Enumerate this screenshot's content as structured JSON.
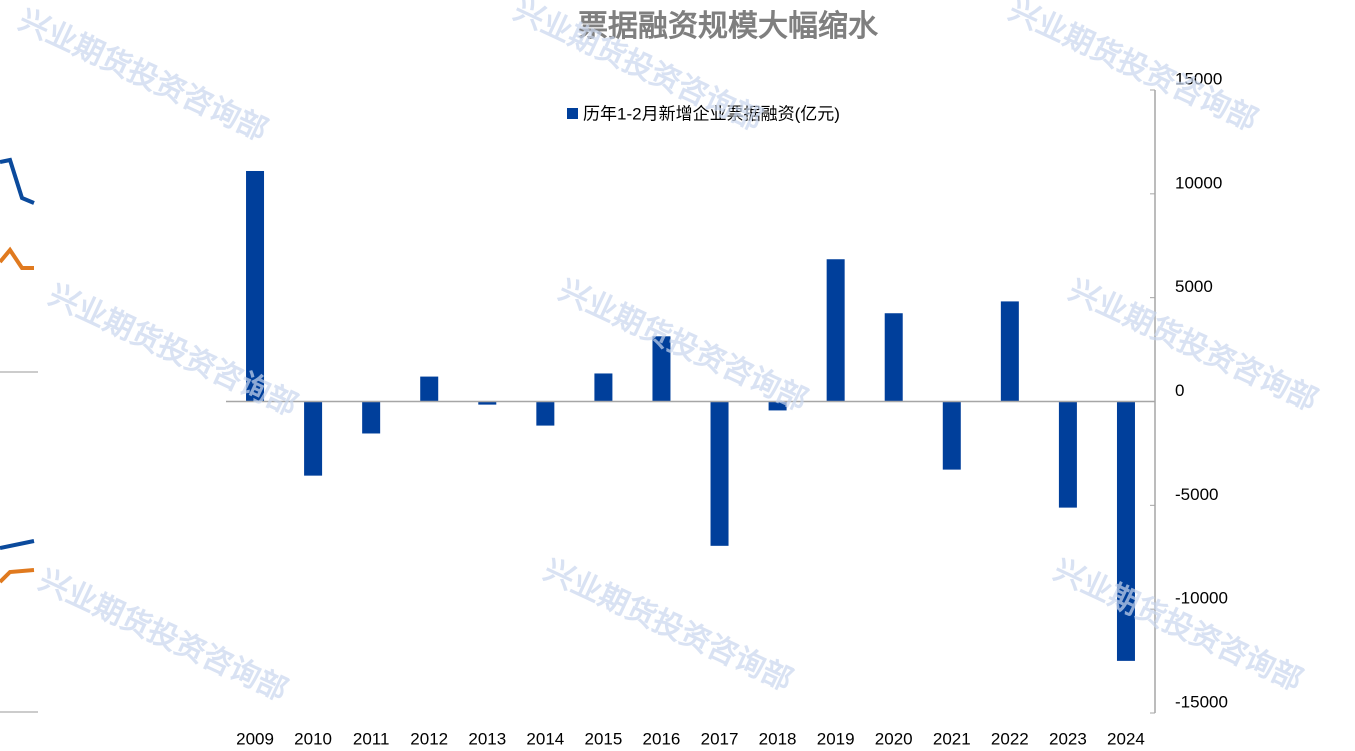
{
  "chart_data": {
    "type": "bar",
    "title": "票据融资规模大幅缩水",
    "watermark": "兴业期货投资咨询部",
    "categories": [
      "2009",
      "2010",
      "2011",
      "2012",
      "2013",
      "2014",
      "2015",
      "2016",
      "2017",
      "2018",
      "2019",
      "2020",
      "2021",
      "2022",
      "2023",
      "2024"
    ],
    "series": [
      {
        "name": "历年1-2月新增企业票据融资(亿元)",
        "color": "#003f9b",
        "values": [
          11100,
          -3570,
          -1540,
          1200,
          -150,
          -1160,
          1350,
          3140,
          -6950,
          -430,
          6850,
          4250,
          -3280,
          4820,
          -5110,
          -12490
        ]
      }
    ],
    "ylim": [
      -15000,
      15000
    ],
    "yticks": [
      -15000,
      -10000,
      -5000,
      0,
      5000,
      10000,
      15000
    ],
    "yaxis_side": "right",
    "legend": "top"
  }
}
